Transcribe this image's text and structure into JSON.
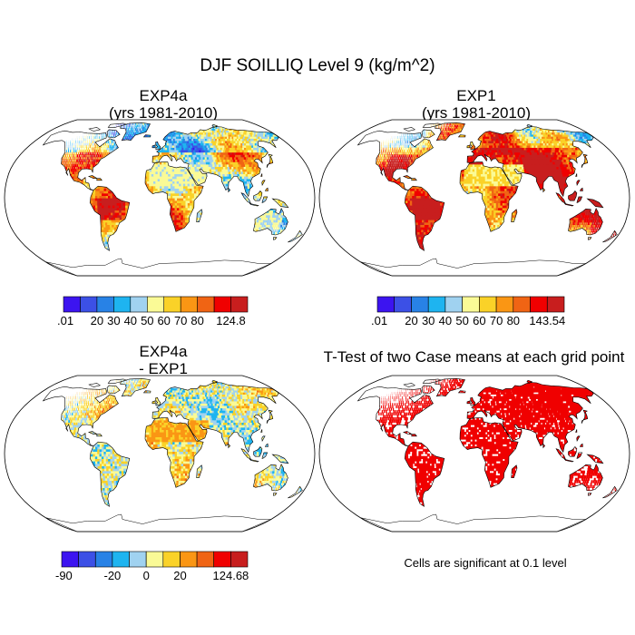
{
  "chart_data": {
    "title": "DJF SOILLIQ Level 9 (kg/m^2)",
    "colors": {
      "sequential": [
        "#3c14f0",
        "#3c50e6",
        "#2882e6",
        "#1eb4f0",
        "#a0d2f0",
        "#fafa96",
        "#fad228",
        "#fa9614",
        "#f06414",
        "#f00000",
        "#c81e1e"
      ],
      "significant": "#f00000",
      "coast": "#000000",
      "background": "#ffffff"
    },
    "panels": [
      {
        "id": "exp4a",
        "type": "heatmap",
        "projection": "robinson",
        "title_line1": "EXP4a",
        "title_line2": "(yrs 1981-2010)",
        "levels": [
          0.01,
          10,
          20,
          30,
          40,
          50,
          60,
          70,
          80,
          90
        ],
        "colorbar_labels": [
          ".01",
          "20",
          "30",
          "40",
          "50",
          "60",
          "70",
          "80",
          "124.8"
        ],
        "colorbar_label_slots": [
          0,
          2,
          3,
          4,
          5,
          6,
          7,
          8,
          10
        ]
      },
      {
        "id": "exp1",
        "type": "heatmap",
        "projection": "robinson",
        "title_line1": "EXP1",
        "title_line2": "(yrs 1981-2010)",
        "levels": [
          0.01,
          10,
          20,
          30,
          40,
          50,
          60,
          70,
          80,
          90
        ],
        "colorbar_labels": [
          ".01",
          "20",
          "30",
          "40",
          "50",
          "60",
          "70",
          "80",
          "143.54"
        ],
        "colorbar_label_slots": [
          0,
          2,
          3,
          4,
          5,
          6,
          7,
          8,
          10
        ]
      },
      {
        "id": "diff",
        "type": "heatmap",
        "projection": "robinson",
        "title_line1": "EXP4a",
        "title_line2": "- EXP1",
        "levels": [
          -90,
          -60,
          -40,
          -20,
          -10,
          0,
          10,
          20,
          40,
          60
        ],
        "colorbar_labels": [
          "-90",
          "-20",
          "0",
          "20",
          "124.68"
        ],
        "colorbar_label_slots": [
          0,
          3,
          5,
          7,
          10
        ]
      },
      {
        "id": "ttest",
        "type": "heatmap",
        "projection": "robinson",
        "title_line1": "T-Test of two Case means at each grid point",
        "note": "Cells are significant at 0.1 level"
      }
    ]
  }
}
